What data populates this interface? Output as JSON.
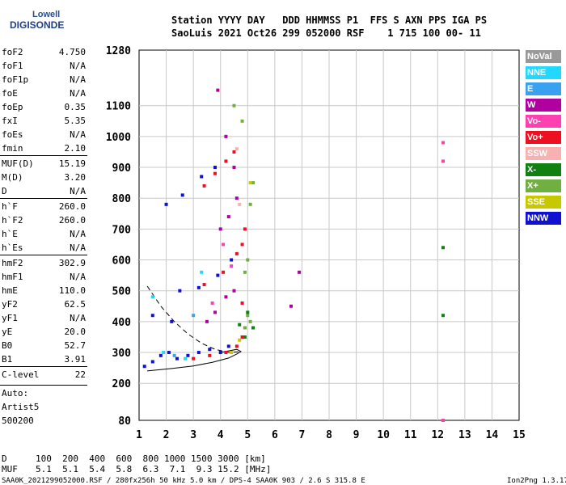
{
  "logo": {
    "line1": "Lowell",
    "line2": "DIGISONDE"
  },
  "header": {
    "labels": "Station YYYY DAY   DDD HHMMSS P1  FFS S AXN PPS IGA PS",
    "values": "SaoLuis 2021 Oct26 299 052000 RSF    1 715 100 00- 11"
  },
  "params": [
    {
      "name": "foF2",
      "value": "4.750"
    },
    {
      "name": "foF1",
      "value": "N/A"
    },
    {
      "name": "foF1p",
      "value": "N/A"
    },
    {
      "name": "foE",
      "value": "N/A"
    },
    {
      "name": "foEp",
      "value": "0.35"
    },
    {
      "name": "fxI",
      "value": "5.35"
    },
    {
      "name": "foEs",
      "value": "N/A"
    },
    {
      "name": "fmin",
      "value": "2.10"
    },
    {
      "name": "MUF(D)",
      "value": "15.19"
    },
    {
      "name": "M(D)",
      "value": "3.20"
    },
    {
      "name": "D",
      "value": "N/A"
    },
    {
      "name": "h`F",
      "value": "260.0"
    },
    {
      "name": "h`F2",
      "value": "260.0"
    },
    {
      "name": "h`E",
      "value": "N/A"
    },
    {
      "name": "h`Es",
      "value": "N/A"
    },
    {
      "name": "hmF2",
      "value": "302.9"
    },
    {
      "name": "hmF1",
      "value": "N/A"
    },
    {
      "name": "hmE",
      "value": "110.0"
    },
    {
      "name": "yF2",
      "value": "62.5"
    },
    {
      "name": "yF1",
      "value": "N/A"
    },
    {
      "name": "yE",
      "value": "20.0"
    },
    {
      "name": "B0",
      "value": "52.7"
    },
    {
      "name": "B1",
      "value": "3.91"
    },
    {
      "name": "C-level",
      "value": "22"
    }
  ],
  "auto": {
    "line1": "Auto:",
    "line2": "Artist5",
    "line3": "500200"
  },
  "legend": [
    {
      "label": "NoVal",
      "color": "#999999"
    },
    {
      "label": "NNE",
      "color": "#22d8ff"
    },
    {
      "label": "E",
      "color": "#3aa0f0"
    },
    {
      "label": "W",
      "color": "#b000a0"
    },
    {
      "label": "Vo-",
      "color": "#ff40b0"
    },
    {
      "label": "Vo+",
      "color": "#ee1020"
    },
    {
      "label": "SSW",
      "color": "#f8b0b0"
    },
    {
      "label": "X-",
      "color": "#108010"
    },
    {
      "label": "X+",
      "color": "#70b040"
    },
    {
      "label": "SSE",
      "color": "#c8c800"
    },
    {
      "label": "NNW",
      "color": "#1010d0"
    }
  ],
  "chart_data": {
    "type": "scatter",
    "title": "",
    "xlabel": "",
    "ylabel": "",
    "xlim": [
      1,
      15
    ],
    "ylim": [
      80,
      1280
    ],
    "x_ticks": [
      1,
      2,
      3,
      4,
      5,
      6,
      7,
      8,
      9,
      10,
      11,
      12,
      13,
      14,
      15
    ],
    "y_ticks": [
      80,
      200,
      300,
      400,
      500,
      600,
      700,
      800,
      900,
      1000,
      1100,
      1280
    ],
    "grid": true,
    "traces": [
      {
        "name": "NNW",
        "color": "#1010d0",
        "points": [
          [
            1.2,
            255
          ],
          [
            1.5,
            270
          ],
          [
            1.8,
            290
          ],
          [
            2.1,
            300
          ],
          [
            2.4,
            280
          ],
          [
            2.8,
            290
          ],
          [
            3.2,
            300
          ],
          [
            3.6,
            310
          ],
          [
            4.0,
            300
          ],
          [
            4.3,
            320
          ],
          [
            2.5,
            500
          ],
          [
            3.2,
            510
          ],
          [
            3.9,
            550
          ],
          [
            4.4,
            600
          ],
          [
            2.0,
            780
          ],
          [
            2.6,
            810
          ],
          [
            3.3,
            870
          ],
          [
            3.8,
            900
          ],
          [
            1.5,
            420
          ],
          [
            2.2,
            400
          ]
        ]
      },
      {
        "name": "Vo+",
        "color": "#ee1020",
        "points": [
          [
            3.0,
            280
          ],
          [
            3.6,
            290
          ],
          [
            4.2,
            300
          ],
          [
            4.6,
            320
          ],
          [
            4.8,
            350
          ],
          [
            4.9,
            380
          ],
          [
            3.4,
            520
          ],
          [
            4.1,
            560
          ],
          [
            4.6,
            620
          ],
          [
            4.8,
            650
          ],
          [
            3.4,
            840
          ],
          [
            3.8,
            880
          ],
          [
            4.2,
            920
          ],
          [
            4.5,
            950
          ],
          [
            4.9,
            700
          ],
          [
            4.8,
            460
          ]
        ]
      },
      {
        "name": "W",
        "color": "#b000a0",
        "points": [
          [
            3.5,
            400
          ],
          [
            3.8,
            430
          ],
          [
            4.2,
            480
          ],
          [
            4.5,
            500
          ],
          [
            4.0,
            700
          ],
          [
            4.3,
            740
          ],
          [
            4.6,
            800
          ],
          [
            3.9,
            1150
          ],
          [
            4.2,
            1000
          ],
          [
            4.5,
            900
          ],
          [
            6.6,
            450
          ],
          [
            6.9,
            560
          ]
        ]
      },
      {
        "name": "X+",
        "color": "#70b040",
        "points": [
          [
            4.9,
            380
          ],
          [
            5.0,
            420
          ],
          [
            5.1,
            400
          ],
          [
            5.0,
            600
          ],
          [
            4.9,
            560
          ],
          [
            5.1,
            780
          ],
          [
            4.8,
            1050
          ],
          [
            4.5,
            1100
          ],
          [
            5.2,
            850
          ]
        ]
      },
      {
        "name": "X-",
        "color": "#108010",
        "points": [
          [
            4.7,
            390
          ],
          [
            4.9,
            350
          ],
          [
            5.0,
            430
          ],
          [
            5.2,
            380
          ],
          [
            12.2,
            640
          ],
          [
            12.2,
            420
          ]
        ]
      },
      {
        "name": "Vo-",
        "color": "#ff40b0",
        "points": [
          [
            3.7,
            460
          ],
          [
            4.1,
            650
          ],
          [
            4.4,
            580
          ],
          [
            12.2,
            980
          ],
          [
            12.2,
            920
          ],
          [
            12.2,
            80
          ]
        ]
      },
      {
        "name": "NNE",
        "color": "#22d8ff",
        "points": [
          [
            1.9,
            300
          ],
          [
            2.7,
            280
          ],
          [
            3.3,
            560
          ],
          [
            1.5,
            480
          ]
        ]
      },
      {
        "name": "SSE",
        "color": "#c8c800",
        "points": [
          [
            4.4,
            300
          ],
          [
            4.7,
            340
          ],
          [
            5.1,
            850
          ]
        ]
      },
      {
        "name": "E",
        "color": "#3aa0f0",
        "points": [
          [
            2.3,
            290
          ],
          [
            3.0,
            420
          ]
        ]
      },
      {
        "name": "SSW",
        "color": "#f8b0b0",
        "points": [
          [
            4.6,
            960
          ],
          [
            4.7,
            780
          ]
        ]
      }
    ],
    "profile_curve": [
      [
        1.3,
        240
      ],
      [
        2.2,
        248
      ],
      [
        3.0,
        256
      ],
      [
        3.7,
        268
      ],
      [
        4.3,
        282
      ],
      [
        4.6,
        295
      ],
      [
        4.75,
        303
      ],
      [
        4.6,
        310
      ],
      [
        4.0,
        300
      ]
    ],
    "dashed_curve": [
      [
        1.3,
        515
      ],
      [
        1.8,
        450
      ],
      [
        2.3,
        400
      ],
      [
        2.8,
        360
      ],
      [
        3.3,
        330
      ],
      [
        3.8,
        310
      ],
      [
        4.3,
        300
      ],
      [
        4.75,
        303
      ]
    ]
  },
  "footer": {
    "d_label": "D",
    "d_values": "100  200  400  600  800 1000 1500 3000 [km]",
    "muf_label": "MUF",
    "muf_values": "5.1  5.1  5.4  5.8  6.3  7.1  9.3 15.2 [MHz]",
    "bottom_left": "SAA0K_2021299052000.RSF / 280fx256h 50 kHz 5.0 km / DPS-4 SAA0K 903 / 2.6 S 315.8 E",
    "bottom_right": "Ion2Png 1.3.17"
  }
}
